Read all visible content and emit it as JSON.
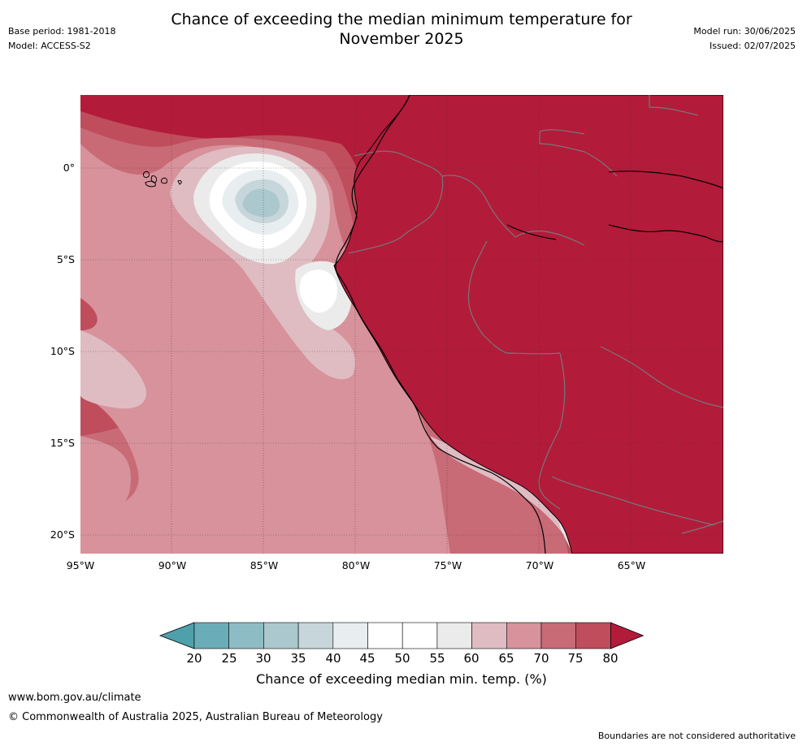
{
  "header": {
    "title_line1": "Chance of exceeding the median minimum temperature for",
    "title_line2": "November 2025",
    "base_period": "Base period: 1981-2018",
    "model": "Model: ACCESS-S2",
    "model_run": "Model run: 30/06/2025",
    "issued": "Issued: 02/07/2025"
  },
  "map": {
    "lat_labels": [
      "0°",
      "5°S",
      "10°S",
      "15°S",
      "20°S"
    ],
    "lon_labels": [
      "95°W",
      "90°W",
      "85°W",
      "80°W",
      "75°W",
      "70°W",
      "65°W"
    ],
    "colors": {
      "ocean_base": "#b31b3a",
      "land": "#b31b3a",
      "coast": "#000000",
      "border": "#777777"
    }
  },
  "colorbar": {
    "ticks": [
      "20",
      "25",
      "30",
      "35",
      "40",
      "45",
      "50",
      "55",
      "60",
      "65",
      "70",
      "75",
      "80"
    ],
    "label": "Chance of exceeding median min. temp. (%)",
    "colors": [
      "#4ea0ab",
      "#6aadb8",
      "#8dbcc4",
      "#aac8cd",
      "#c6d6da",
      "#e8eef0",
      "#ffffff",
      "#ffffff",
      "#ebebeb",
      "#dfbcc2",
      "#d7929b",
      "#c86b77",
      "#bf4d5c",
      "#b31b3a"
    ]
  },
  "footer": {
    "url": "www.bom.gov.au/climate",
    "copyright": "© Commonwealth of Australia 2025, Australian Bureau of Meteorology",
    "disclaimer": "Boundaries are not considered authoritative"
  }
}
